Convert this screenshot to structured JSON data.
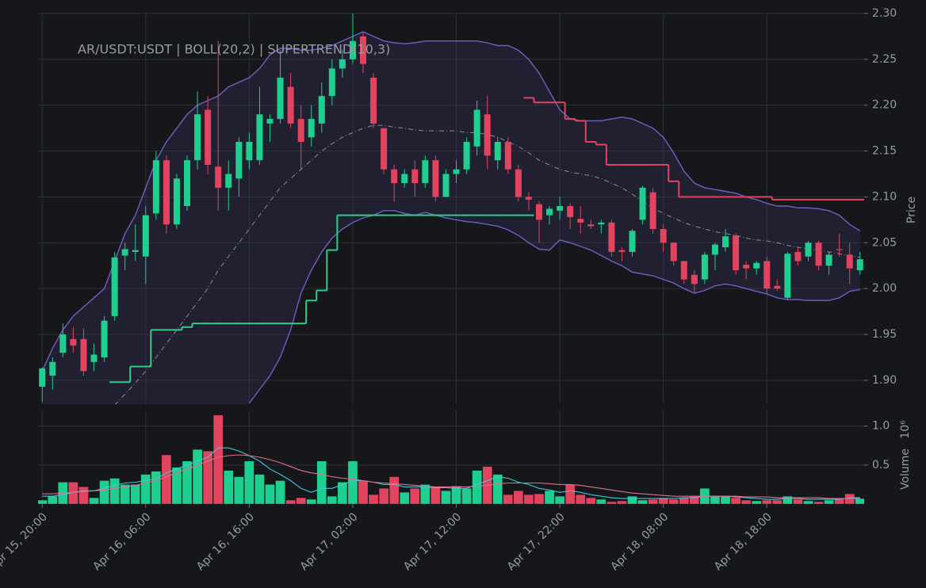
{
  "chart_data": {
    "type": "candlestick",
    "title": "AR/USDT:USDT | BOLL(20,2) | SUPERTREND(10,3)",
    "ylabel": "Price",
    "grid": true,
    "up_color": "#1fcf8f",
    "down_color": "#e2445f",
    "xlim": [
      -0.4,
      79.4
    ],
    "xticks": [
      {
        "value": 0,
        "label": "Apr 15, 20:00"
      },
      {
        "value": 10,
        "label": "Apr 16, 06:00"
      },
      {
        "value": 20,
        "label": "Apr 16, 16:00"
      },
      {
        "value": 30,
        "label": "Apr 17, 02:00"
      },
      {
        "value": 40,
        "label": "Apr 17, 12:00"
      },
      {
        "value": 50,
        "label": "Apr 17, 22:00"
      },
      {
        "value": 60,
        "label": "Apr 18, 08:00"
      },
      {
        "value": 70,
        "label": "Apr 18, 18:00"
      }
    ],
    "ylim": [
      1.874,
      2.3
    ],
    "yticks": [
      {
        "value": 1.9,
        "label": "1.90"
      },
      1.95,
      {
        "value": 2.0,
        "label": "2.00"
      },
      2.05,
      {
        "value": 2.1,
        "label": "2.10"
      },
      2.15,
      {
        "value": 2.2,
        "label": "2.20"
      },
      2.25,
      {
        "value": 2.3,
        "label": "2.30"
      }
    ],
    "x": [
      0,
      1,
      2,
      3,
      4,
      5,
      6,
      7,
      8,
      9,
      10,
      11,
      12,
      13,
      14,
      15,
      16,
      17,
      18,
      19,
      20,
      21,
      22,
      23,
      24,
      25,
      26,
      27,
      28,
      29,
      30,
      31,
      32,
      33,
      34,
      35,
      36,
      37,
      38,
      39,
      40,
      41,
      42,
      43,
      44,
      45,
      46,
      47,
      48,
      49,
      50,
      51,
      52,
      53,
      54,
      55,
      56,
      57,
      58,
      59,
      60,
      61,
      62,
      63,
      64,
      65,
      66,
      67,
      68,
      69,
      70,
      71,
      72,
      73,
      74,
      75,
      76,
      77,
      78,
      79
    ],
    "open": [
      1.893,
      1.905,
      1.93,
      1.945,
      1.945,
      1.92,
      1.925,
      1.97,
      2.036,
      2.04,
      2.035,
      2.082,
      2.14,
      2.07,
      2.09,
      2.14,
      2.195,
      2.133,
      2.11,
      2.12,
      2.14,
      2.14,
      2.18,
      2.185,
      2.22,
      2.185,
      2.165,
      2.18,
      2.21,
      2.24,
      2.25,
      2.275,
      2.23,
      2.175,
      2.13,
      2.115,
      2.13,
      2.115,
      2.14,
      2.1,
      2.125,
      2.13,
      2.155,
      2.19,
      2.14,
      2.16,
      2.13,
      2.1,
      2.092,
      2.08,
      2.085,
      2.09,
      2.076,
      2.07,
      2.07,
      2.072,
      2.042,
      2.04,
      2.075,
      2.105,
      2.065,
      2.05,
      2.03,
      2.015,
      2.01,
      2.037,
      2.045,
      2.058,
      2.026,
      2.022,
      2.03,
      2.003,
      1.99,
      2.04,
      2.035,
      2.05,
      2.025,
      2.043,
      2.037,
      2.02
    ],
    "high": [
      1.914,
      1.925,
      1.962,
      1.958,
      1.957,
      1.94,
      1.97,
      2.04,
      2.05,
      2.07,
      2.09,
      2.15,
      2.145,
      2.125,
      2.145,
      2.215,
      2.21,
      2.27,
      2.14,
      2.165,
      2.17,
      2.22,
      2.19,
      2.26,
      2.235,
      2.2,
      2.2,
      2.225,
      2.25,
      2.26,
      2.3,
      2.28,
      2.235,
      2.175,
      2.135,
      2.13,
      2.14,
      2.145,
      2.145,
      2.13,
      2.14,
      2.165,
      2.205,
      2.21,
      2.165,
      2.165,
      2.135,
      2.105,
      2.095,
      2.09,
      2.1,
      2.093,
      2.09,
      2.075,
      2.075,
      2.075,
      2.045,
      2.065,
      2.112,
      2.11,
      2.07,
      2.05,
      2.03,
      2.02,
      2.04,
      2.05,
      2.065,
      2.06,
      2.03,
      2.03,
      2.035,
      2.01,
      2.04,
      2.045,
      2.052,
      2.052,
      2.04,
      2.06,
      2.05,
      2.04
    ],
    "low": [
      1.876,
      1.89,
      1.925,
      1.93,
      1.905,
      1.91,
      1.92,
      1.965,
      2.02,
      2.03,
      2.005,
      2.075,
      2.06,
      2.065,
      2.085,
      2.13,
      2.125,
      2.085,
      2.085,
      2.1,
      2.13,
      2.135,
      2.16,
      2.18,
      2.175,
      2.13,
      2.155,
      2.17,
      2.2,
      2.23,
      2.245,
      2.235,
      2.175,
      2.125,
      2.095,
      2.11,
      2.1,
      2.11,
      2.095,
      2.1,
      2.115,
      2.125,
      2.145,
      2.13,
      2.13,
      2.125,
      2.095,
      2.085,
      2.05,
      2.07,
      2.075,
      2.065,
      2.06,
      2.065,
      2.06,
      2.035,
      2.03,
      2.035,
      2.07,
      2.06,
      2.04,
      2.025,
      2.005,
      1.995,
      2.005,
      2.02,
      2.04,
      2.015,
      2.01,
      2.015,
      1.995,
      1.998,
      1.988,
      2.025,
      2.03,
      2.02,
      2.015,
      2.035,
      2.005,
      2.015
    ],
    "close": [
      1.913,
      1.92,
      1.95,
      1.938,
      1.91,
      1.928,
      1.965,
      2.034,
      2.043,
      2.042,
      2.08,
      2.14,
      2.07,
      2.12,
      2.14,
      2.19,
      2.135,
      2.11,
      2.125,
      2.16,
      2.16,
      2.19,
      2.185,
      2.23,
      2.18,
      2.16,
      2.185,
      2.21,
      2.24,
      2.25,
      2.27,
      2.245,
      2.18,
      2.13,
      2.115,
      2.125,
      2.115,
      2.14,
      2.1,
      2.125,
      2.13,
      2.16,
      2.195,
      2.145,
      2.16,
      2.13,
      2.1,
      2.097,
      2.075,
      2.087,
      2.09,
      2.078,
      2.072,
      2.068,
      2.072,
      2.04,
      2.04,
      2.063,
      2.11,
      2.065,
      2.05,
      2.03,
      2.01,
      2.005,
      2.037,
      2.048,
      2.057,
      2.02,
      2.022,
      2.028,
      2.0,
      2.0,
      2.038,
      2.03,
      2.05,
      2.025,
      2.037,
      2.042,
      2.022,
      2.032
    ],
    "bollinger": {
      "color": "#6f5fc4",
      "middle_color": "#8a8d96",
      "fill": "rgba(58,54,96,0.32)",
      "upper": [
        1.91,
        1.935,
        1.955,
        1.97,
        1.98,
        1.99,
        2.0,
        2.03,
        2.06,
        2.08,
        2.11,
        2.14,
        2.16,
        2.175,
        2.19,
        2.2,
        2.205,
        2.21,
        2.22,
        2.225,
        2.23,
        2.24,
        2.255,
        2.262,
        2.262,
        2.26,
        2.26,
        2.262,
        2.265,
        2.27,
        2.275,
        2.28,
        2.275,
        2.27,
        2.268,
        2.267,
        2.268,
        2.27,
        2.27,
        2.27,
        2.27,
        2.27,
        2.27,
        2.268,
        2.265,
        2.265,
        2.26,
        2.25,
        2.235,
        2.215,
        2.195,
        2.185,
        2.183,
        2.183,
        2.183,
        2.185,
        2.187,
        2.185,
        2.18,
        2.175,
        2.165,
        2.148,
        2.128,
        2.115,
        2.11,
        2.108,
        2.106,
        2.104,
        2.1,
        2.097,
        2.093,
        2.09,
        2.09,
        2.088,
        2.088,
        2.087,
        2.085,
        2.08,
        2.07,
        2.063
      ],
      "middle": [
        null,
        null,
        null,
        null,
        null,
        null,
        null,
        1.873,
        1.885,
        1.897,
        1.91,
        1.925,
        1.94,
        1.955,
        1.97,
        1.985,
        2.0,
        2.02,
        2.035,
        2.05,
        2.065,
        2.08,
        2.095,
        2.11,
        2.12,
        2.13,
        2.14,
        2.15,
        2.158,
        2.165,
        2.17,
        2.175,
        2.178,
        2.178,
        2.176,
        2.175,
        2.173,
        2.172,
        2.172,
        2.172,
        2.172,
        2.17,
        2.17,
        2.168,
        2.165,
        2.16,
        2.155,
        2.148,
        2.14,
        2.135,
        2.13,
        2.127,
        2.125,
        2.123,
        2.12,
        2.115,
        2.11,
        2.103,
        2.095,
        2.088,
        2.082,
        2.077,
        2.072,
        2.068,
        2.065,
        2.062,
        2.06,
        2.058,
        2.055,
        2.053,
        2.052,
        2.05,
        2.047,
        2.045,
        2.043,
        2.042,
        2.04,
        2.038,
        2.036,
        2.034
      ],
      "lower": [
        null,
        null,
        null,
        null,
        null,
        null,
        null,
        null,
        null,
        null,
        null,
        null,
        null,
        null,
        null,
        null,
        null,
        null,
        null,
        null,
        1.875,
        1.89,
        1.905,
        1.925,
        1.955,
        1.995,
        2.02,
        2.04,
        2.055,
        2.065,
        2.072,
        2.077,
        2.08,
        2.085,
        2.085,
        2.082,
        2.08,
        2.083,
        2.08,
        2.077,
        2.075,
        2.073,
        2.072,
        2.07,
        2.068,
        2.064,
        2.058,
        2.05,
        2.043,
        2.042,
        2.053,
        2.05,
        2.046,
        2.042,
        2.036,
        2.03,
        2.025,
        2.018,
        2.016,
        2.014,
        2.01,
        2.006,
        2.0,
        1.995,
        1.998,
        2.003,
        2.005,
        2.003,
        2.0,
        1.997,
        1.994,
        1.99,
        1.988,
        1.988,
        1.987,
        1.987,
        1.987,
        1.99,
        1.997,
        1.999
      ]
    },
    "supertrend": [
      {
        "color": "#2bcf8a",
        "values": [
          null,
          null,
          null,
          null,
          null,
          null,
          null,
          1.898,
          1.898,
          1.915,
          1.915,
          1.955,
          1.955,
          1.955,
          1.958,
          1.962,
          1.962,
          1.962,
          1.962,
          1.962,
          1.962,
          1.962,
          1.962,
          1.962,
          1.962,
          1.962,
          1.987,
          1.998,
          2.042,
          2.08,
          2.08,
          2.08,
          2.08,
          2.08,
          2.08,
          2.08,
          2.08,
          2.08,
          2.08,
          2.08,
          2.08,
          2.08,
          2.08,
          2.08,
          2.08,
          2.08,
          2.08,
          2.08,
          null,
          null,
          null,
          null,
          null,
          null,
          null,
          null,
          null,
          null,
          null,
          null,
          null,
          null,
          null,
          null,
          null,
          null,
          null,
          null,
          null,
          null,
          null,
          null,
          null,
          null,
          null,
          null,
          null,
          null,
          null,
          null
        ]
      },
      {
        "color": "#e2445f",
        "values": [
          null,
          null,
          null,
          null,
          null,
          null,
          null,
          null,
          null,
          null,
          null,
          null,
          null,
          null,
          null,
          null,
          null,
          null,
          null,
          null,
          null,
          null,
          null,
          null,
          null,
          null,
          null,
          null,
          null,
          null,
          null,
          null,
          null,
          null,
          null,
          null,
          null,
          null,
          null,
          null,
          null,
          null,
          null,
          null,
          null,
          null,
          null,
          2.208,
          2.203,
          2.203,
          2.203,
          2.185,
          2.183,
          2.16,
          2.157,
          2.135,
          2.135,
          2.135,
          2.135,
          2.135,
          2.135,
          2.117,
          2.1,
          2.1,
          2.1,
          2.1,
          2.1,
          2.1,
          2.1,
          2.1,
          2.1,
          2.097,
          2.097,
          2.097,
          2.097,
          2.097,
          2.097,
          2.097,
          2.097,
          2.097
        ]
      }
    ],
    "volume": {
      "ylabel": "Volume",
      "offset_label": "10⁶",
      "ylim": [
        0,
        1.2
      ],
      "yticks": [
        0.5,
        {
          "value": 1,
          "label": "1.0"
        }
      ],
      "values": [
        0.05,
        0.1,
        0.28,
        0.28,
        0.22,
        0.08,
        0.3,
        0.33,
        0.25,
        0.25,
        0.38,
        0.42,
        0.63,
        0.47,
        0.55,
        0.7,
        0.68,
        1.14,
        0.43,
        0.35,
        0.55,
        0.38,
        0.25,
        0.3,
        0.05,
        0.08,
        0.06,
        0.55,
        0.1,
        0.28,
        0.55,
        0.3,
        0.12,
        0.2,
        0.35,
        0.15,
        0.2,
        0.25,
        0.22,
        0.17,
        0.23,
        0.2,
        0.43,
        0.48,
        0.38,
        0.12,
        0.17,
        0.12,
        0.13,
        0.17,
        0.1,
        0.25,
        0.12,
        0.08,
        0.06,
        0.03,
        0.04,
        0.1,
        0.05,
        0.06,
        0.08,
        0.06,
        0.08,
        0.1,
        0.2,
        0.1,
        0.1,
        0.08,
        0.05,
        0.04,
        0.05,
        0.05,
        0.1,
        0.06,
        0.04,
        0.03,
        0.05,
        0.07,
        0.13,
        0.07
      ],
      "ma": [
        {
          "color": "#3fc9d6",
          "values": [
            0.1,
            0.1,
            0.12,
            0.15,
            0.17,
            0.17,
            0.2,
            0.24,
            0.27,
            0.28,
            0.3,
            0.32,
            0.4,
            0.45,
            0.5,
            0.55,
            0.6,
            0.72,
            0.72,
            0.68,
            0.62,
            0.55,
            0.45,
            0.38,
            0.3,
            0.2,
            0.15,
            0.2,
            0.2,
            0.25,
            0.3,
            0.3,
            0.28,
            0.25,
            0.25,
            0.22,
            0.22,
            0.22,
            0.21,
            0.21,
            0.2,
            0.2,
            0.25,
            0.3,
            0.35,
            0.33,
            0.28,
            0.25,
            0.2,
            0.18,
            0.15,
            0.17,
            0.15,
            0.12,
            0.1,
            0.08,
            0.07,
            0.07,
            0.07,
            0.07,
            0.07,
            0.07,
            0.08,
            0.08,
            0.1,
            0.1,
            0.1,
            0.09,
            0.08,
            0.07,
            0.06,
            0.06,
            0.07,
            0.07,
            0.06,
            0.06,
            0.06,
            0.06,
            0.08,
            0.08
          ]
        },
        {
          "color": "#e0708c",
          "values": [
            0.13,
            0.13,
            0.14,
            0.15,
            0.16,
            0.17,
            0.18,
            0.2,
            0.22,
            0.24,
            0.27,
            0.3,
            0.35,
            0.4,
            0.45,
            0.5,
            0.55,
            0.6,
            0.62,
            0.63,
            0.62,
            0.6,
            0.57,
            0.53,
            0.48,
            0.43,
            0.4,
            0.38,
            0.35,
            0.33,
            0.32,
            0.3,
            0.28,
            0.27,
            0.26,
            0.25,
            0.24,
            0.23,
            0.22,
            0.22,
            0.22,
            0.22,
            0.23,
            0.24,
            0.26,
            0.27,
            0.27,
            0.27,
            0.27,
            0.26,
            0.25,
            0.25,
            0.24,
            0.22,
            0.2,
            0.18,
            0.16,
            0.14,
            0.13,
            0.12,
            0.11,
            0.1,
            0.1,
            0.1,
            0.1,
            0.1,
            0.1,
            0.1,
            0.09,
            0.09,
            0.09,
            0.08,
            0.08,
            0.08,
            0.08,
            0.08,
            0.07,
            0.07,
            0.07,
            0.07
          ]
        }
      ]
    }
  }
}
